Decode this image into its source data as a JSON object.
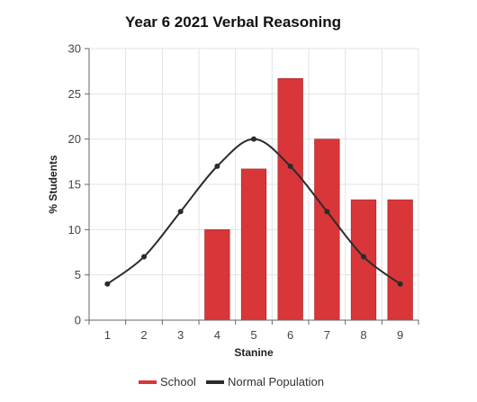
{
  "chart_data": {
    "type": "bar",
    "title": "Year 6 2021 Verbal Reasoning",
    "xlabel": "Stanine",
    "ylabel": "% Students",
    "categories": [
      "1",
      "2",
      "3",
      "4",
      "5",
      "6",
      "7",
      "8",
      "9"
    ],
    "ylim": [
      0,
      30
    ],
    "yticks": [
      0,
      5,
      10,
      15,
      20,
      25,
      30
    ],
    "grid": true,
    "legend_position": "bottom",
    "series": [
      {
        "name": "School",
        "type": "bar",
        "color": "#d9363a",
        "values": [
          0,
          0,
          0,
          10,
          16.7,
          26.7,
          20,
          13.3,
          13.3
        ]
      },
      {
        "name": "Normal Population",
        "type": "line",
        "color": "#2b2b2b",
        "values": [
          4,
          7,
          12,
          17,
          20,
          17,
          12,
          7,
          4
        ]
      }
    ]
  }
}
